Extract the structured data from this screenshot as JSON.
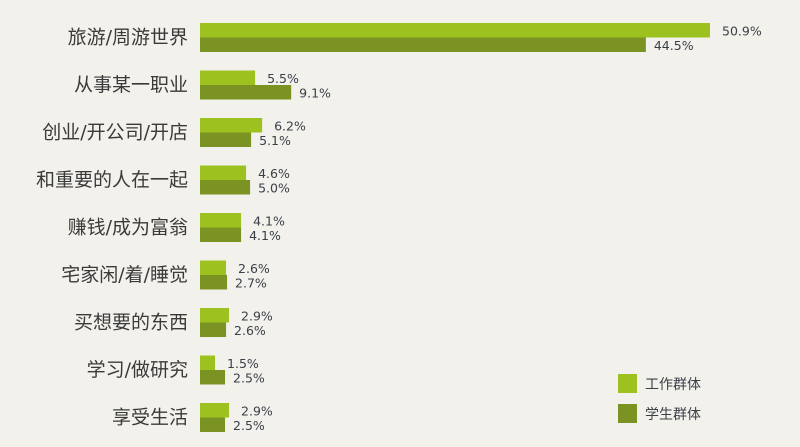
{
  "chart_data": {
    "type": "bar",
    "orientation": "horizontal",
    "title": "",
    "xlabel": "",
    "ylabel": "",
    "xlim": [
      0,
      50.9
    ],
    "grid": false,
    "legend_placement": "bottom-right",
    "categories": [
      "旅游/周游世界",
      "从事某一职业",
      "创业/开公司/开店",
      "和重要的人在一起",
      "赚钱/成为富翁",
      "宅家闲/着/睡觉",
      "买想要的东西",
      "学习/做研究",
      "享受生活"
    ],
    "series": [
      {
        "name": "工作群体",
        "color": "#9dc220",
        "values": [
          50.9,
          5.5,
          6.2,
          4.6,
          4.1,
          2.6,
          2.9,
          1.5,
          2.9
        ],
        "labels": [
          "50.9%",
          "5.5%",
          "6.2%",
          "4.6%",
          "4.1%",
          "2.6%",
          "2.9%",
          "1.5%",
          "2.9%"
        ]
      },
      {
        "name": "学生群体",
        "color": "#7b9323",
        "values": [
          44.5,
          9.1,
          5.1,
          5.0,
          4.1,
          2.7,
          2.6,
          2.5,
          2.5
        ],
        "labels": [
          "44.5%",
          "9.1%",
          "5.1%",
          "5.0%",
          "4.1%",
          "2.7%",
          "2.6%",
          "2.5%",
          "2.5%"
        ]
      }
    ]
  }
}
